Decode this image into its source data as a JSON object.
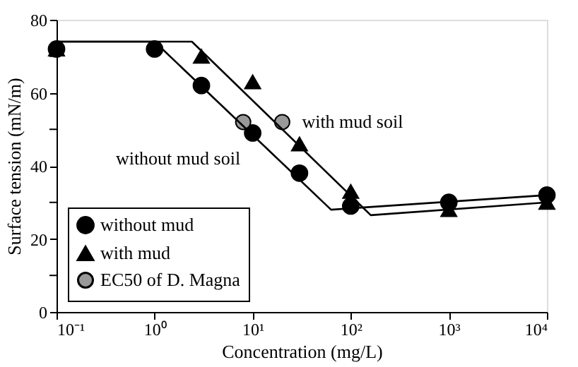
{
  "chart_data": {
    "type": "scatter",
    "xlabel": "Concentration (mg/L)",
    "ylabel": "Surface tension (mN/m)",
    "log": "x",
    "xlim": [
      0.1,
      10000
    ],
    "xticks": [
      {
        "value": 0.1,
        "label": "10⁻¹"
      },
      {
        "value": 1,
        "label": "10⁰"
      },
      {
        "value": 10,
        "label": "10¹"
      },
      {
        "value": 100,
        "label": "10²"
      },
      {
        "value": 1000,
        "label": "10³"
      },
      {
        "value": 10000,
        "label": "10⁴"
      }
    ],
    "ylim": [
      0,
      80
    ],
    "yticks": [
      0,
      {
        "value": 10,
        "label": null
      },
      20,
      {
        "value": 30,
        "label": null
      },
      40,
      {
        "value": 50,
        "label": null
      },
      60,
      {
        "value": 70,
        "label": null
      },
      80
    ],
    "grid": false,
    "legend": "bottom left",
    "series": [
      {
        "name": "without mud",
        "color": "#000000",
        "marker": "circle",
        "x": [
          0.1,
          1,
          3,
          10,
          30,
          100,
          1000,
          10000
        ],
        "values": [
          72,
          72,
          62,
          49,
          38,
          29,
          30,
          32
        ]
      },
      {
        "name": "with mud",
        "color": "#000000",
        "marker": "triangle",
        "x": [
          0.1,
          3,
          10,
          30,
          100,
          1000,
          10000
        ],
        "values": [
          72,
          70,
          63,
          46,
          33,
          28,
          30
        ]
      },
      {
        "name": "EC50 of D. Magna",
        "color": "#999999",
        "marker": "circle",
        "x": [
          8,
          20
        ],
        "values": [
          52,
          52
        ]
      },
      {
        "type": "line",
        "color": "#000000",
        "line_style": "solid",
        "x": [
          0.1,
          1,
          63,
          10000
        ],
        "values": [
          74,
          74,
          28,
          32
        ]
      },
      {
        "type": "line",
        "color": "#000000",
        "line_style": "solid",
        "x": [
          0.1,
          2.4,
          160,
          10000
        ],
        "values": [
          74,
          74,
          26.5,
          30
        ]
      }
    ],
    "annotations": [
      {
        "text": "with mud soil",
        "x": 20,
        "y": 52
      },
      {
        "text": "without mud soil",
        "x": 8,
        "y": 52
      }
    ]
  }
}
